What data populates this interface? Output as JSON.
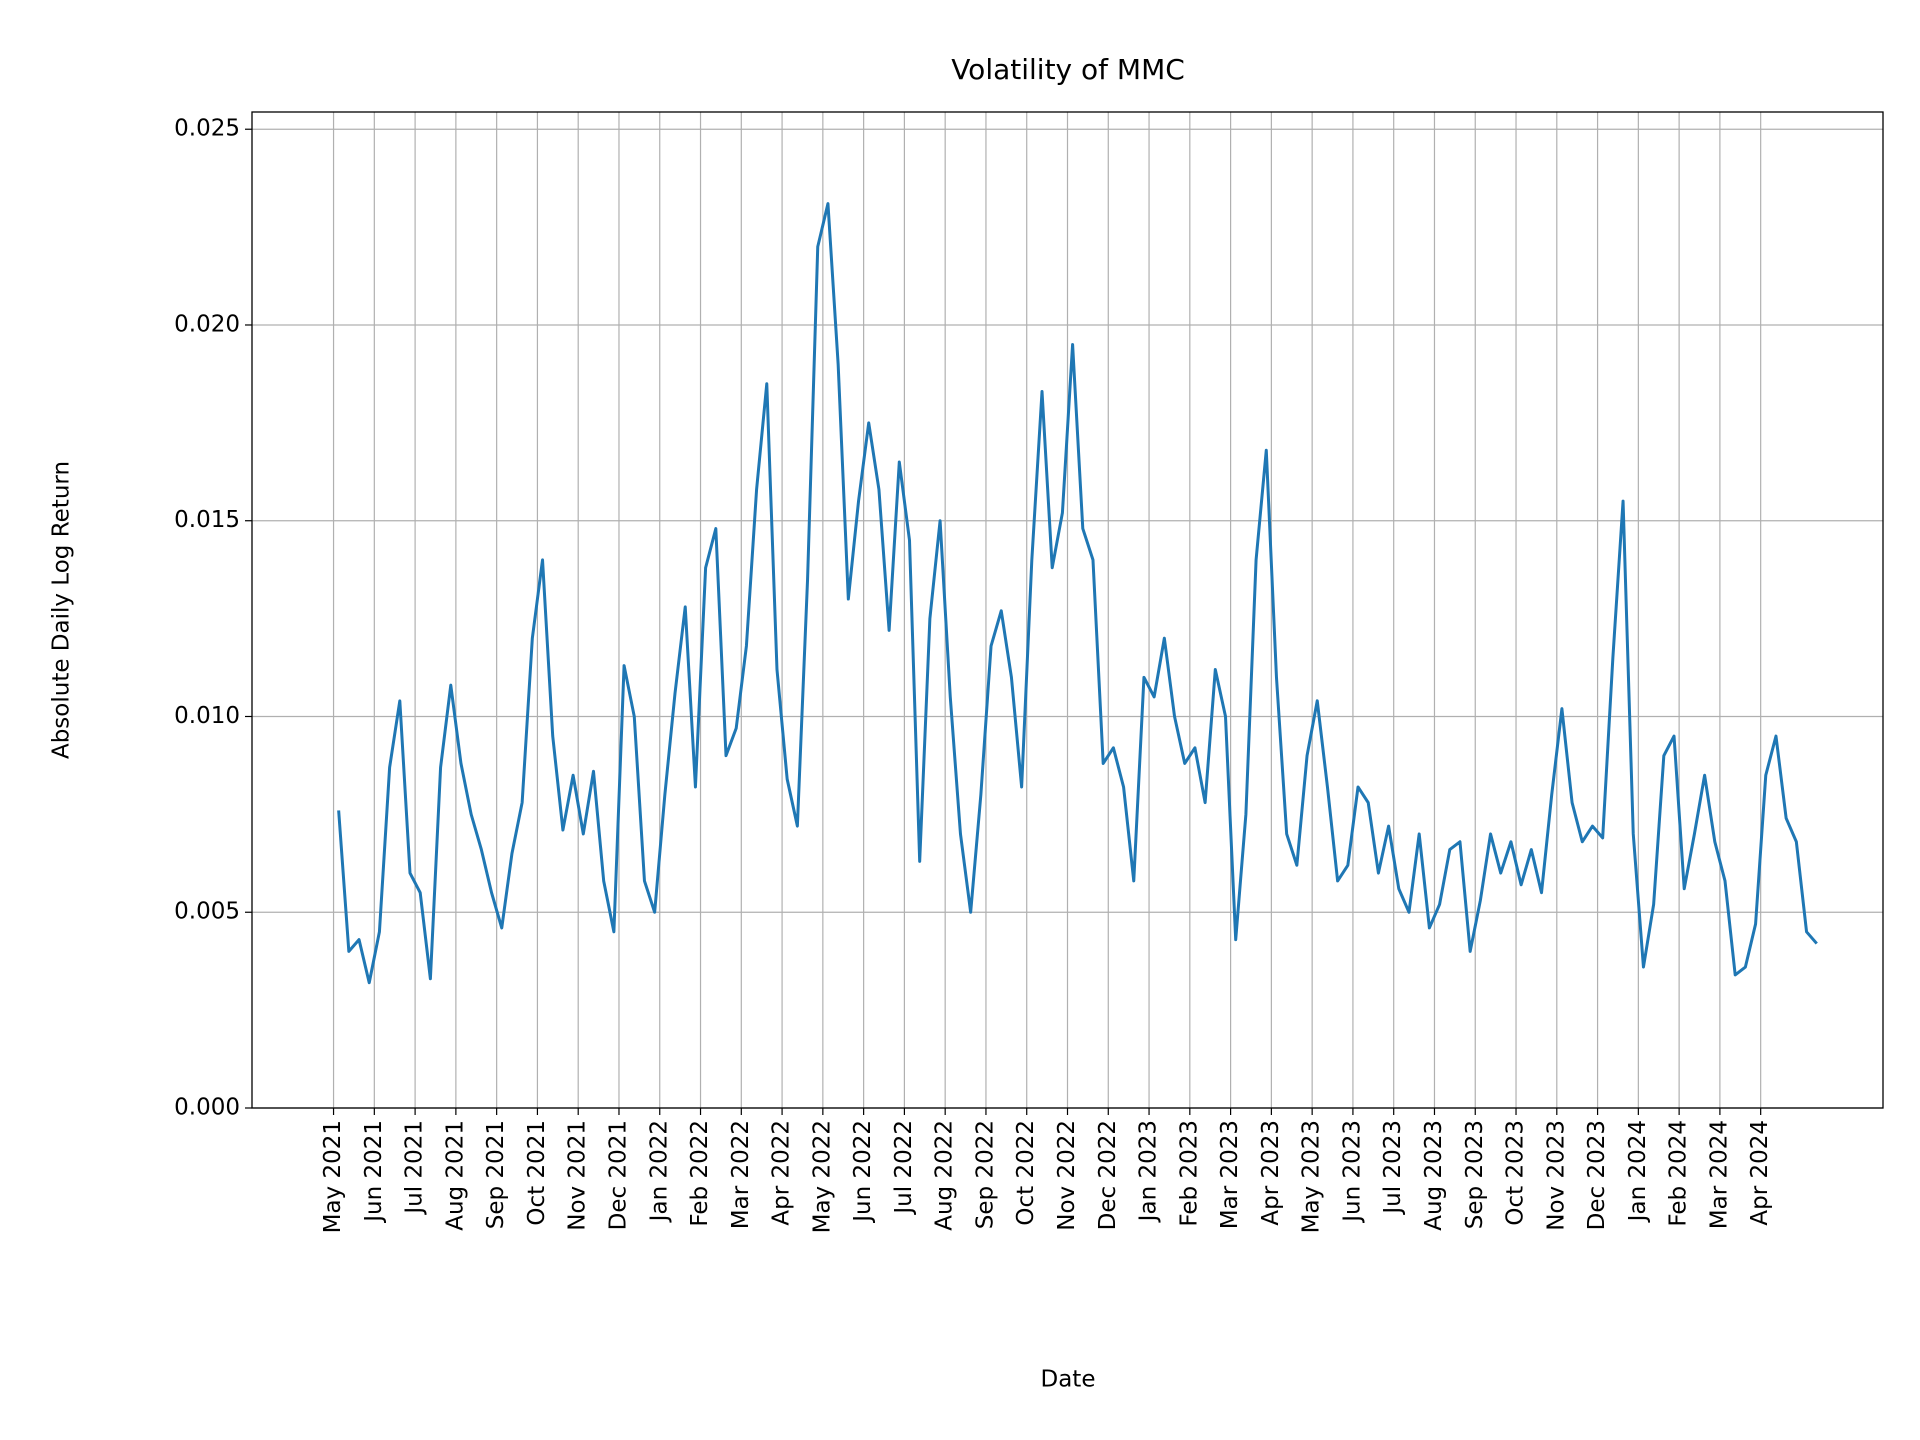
{
  "chart_data": {
    "type": "line",
    "title": "Volatility of MMC",
    "xlabel": "Date",
    "ylabel": "Absolute Daily Log Return",
    "x": [
      "2021-05",
      "2021-05",
      "2021-05",
      "2021-05",
      "2021-06",
      "2021-06",
      "2021-06",
      "2021-06",
      "2021-07",
      "2021-07",
      "2021-07",
      "2021-07",
      "2021-08",
      "2021-08",
      "2021-08",
      "2021-08",
      "2021-09",
      "2021-09",
      "2021-09",
      "2021-09",
      "2021-10",
      "2021-10",
      "2021-10",
      "2021-10",
      "2021-11",
      "2021-11",
      "2021-11",
      "2021-11",
      "2021-12",
      "2021-12",
      "2021-12",
      "2021-12",
      "2022-01",
      "2022-01",
      "2022-01",
      "2022-01",
      "2022-02",
      "2022-02",
      "2022-02",
      "2022-02",
      "2022-03",
      "2022-03",
      "2022-03",
      "2022-03",
      "2022-04",
      "2022-04",
      "2022-04",
      "2022-04",
      "2022-05",
      "2022-05",
      "2022-05",
      "2022-05",
      "2022-06",
      "2022-06",
      "2022-06",
      "2022-06",
      "2022-07",
      "2022-07",
      "2022-07",
      "2022-07",
      "2022-08",
      "2022-08",
      "2022-08",
      "2022-08",
      "2022-09",
      "2022-09",
      "2022-09",
      "2022-09",
      "2022-10",
      "2022-10",
      "2022-10",
      "2022-10",
      "2022-11",
      "2022-11",
      "2022-11",
      "2022-11",
      "2022-12",
      "2022-12",
      "2022-12",
      "2022-12",
      "2023-01",
      "2023-01",
      "2023-01",
      "2023-01",
      "2023-02",
      "2023-02",
      "2023-02",
      "2023-02",
      "2023-03",
      "2023-03",
      "2023-03",
      "2023-03",
      "2023-04",
      "2023-04",
      "2023-04",
      "2023-04",
      "2023-05",
      "2023-05",
      "2023-05",
      "2023-05",
      "2023-06",
      "2023-06",
      "2023-06",
      "2023-06",
      "2023-07",
      "2023-07",
      "2023-07",
      "2023-07",
      "2023-08",
      "2023-08",
      "2023-08",
      "2023-08",
      "2023-09",
      "2023-09",
      "2023-09",
      "2023-09",
      "2023-10",
      "2023-10",
      "2023-10",
      "2023-10",
      "2023-11",
      "2023-11",
      "2023-11",
      "2023-11",
      "2023-12",
      "2023-12",
      "2023-12",
      "2023-12",
      "2024-01",
      "2024-01",
      "2024-01",
      "2024-01",
      "2024-02",
      "2024-02",
      "2024-02",
      "2024-02",
      "2024-03",
      "2024-03",
      "2024-03",
      "2024-03",
      "2024-04",
      "2024-04",
      "2024-04",
      "2024-04",
      "2024-05",
      "2024-05"
    ],
    "values": [
      0.0076,
      0.004,
      0.0043,
      0.0032,
      0.0045,
      0.0087,
      0.0104,
      0.006,
      0.0055,
      0.0033,
      0.0087,
      0.0108,
      0.0088,
      0.0075,
      0.0066,
      0.0055,
      0.0046,
      0.0065,
      0.0078,
      0.012,
      0.014,
      0.0095,
      0.0071,
      0.0085,
      0.007,
      0.0086,
      0.0058,
      0.0045,
      0.0113,
      0.01,
      0.0058,
      0.005,
      0.008,
      0.0106,
      0.0128,
      0.0082,
      0.0138,
      0.0148,
      0.009,
      0.0097,
      0.0118,
      0.0158,
      0.0185,
      0.0112,
      0.0084,
      0.0072,
      0.0135,
      0.022,
      0.0231,
      0.019,
      0.013,
      0.0155,
      0.0175,
      0.0158,
      0.0122,
      0.0165,
      0.0145,
      0.0063,
      0.0125,
      0.015,
      0.0105,
      0.007,
      0.005,
      0.008,
      0.0118,
      0.0127,
      0.011,
      0.0082,
      0.014,
      0.0183,
      0.0138,
      0.0152,
      0.0195,
      0.0148,
      0.014,
      0.0088,
      0.0092,
      0.0082,
      0.0058,
      0.011,
      0.0105,
      0.012,
      0.01,
      0.0088,
      0.0092,
      0.0078,
      0.0112,
      0.01,
      0.0043,
      0.0075,
      0.014,
      0.0168,
      0.011,
      0.007,
      0.0062,
      0.009,
      0.0104,
      0.0082,
      0.0058,
      0.0062,
      0.0082,
      0.0078,
      0.006,
      0.0072,
      0.0056,
      0.005,
      0.007,
      0.0046,
      0.0052,
      0.0066,
      0.0068,
      0.004,
      0.0053,
      0.007,
      0.006,
      0.0068,
      0.0057,
      0.0066,
      0.0055,
      0.008,
      0.0102,
      0.0078,
      0.0068,
      0.0072,
      0.0069,
      0.0115,
      0.0155,
      0.007,
      0.0036,
      0.0052,
      0.009,
      0.0095,
      0.0056,
      0.007,
      0.0085,
      0.0068,
      0.0058,
      0.0034,
      0.0036,
      0.0047,
      0.0085,
      0.0095,
      0.0074,
      0.0068,
      0.0045,
      0.0042
    ],
    "color": "#1f77b4",
    "xlim": [
      "2021-03",
      "2024-07"
    ],
    "xticks": [
      {
        "value": "2021-05",
        "label": "May 2021"
      },
      {
        "value": "2021-06",
        "label": "Jun 2021"
      },
      {
        "value": "2021-07",
        "label": "Jul 2021"
      },
      {
        "value": "2021-08",
        "label": "Aug 2021"
      },
      {
        "value": "2021-09",
        "label": "Sep 2021"
      },
      {
        "value": "2021-10",
        "label": "Oct 2021"
      },
      {
        "value": "2021-11",
        "label": "Nov 2021"
      },
      {
        "value": "2021-12",
        "label": "Dec 2021"
      },
      {
        "value": "2022-01",
        "label": "Jan 2022"
      },
      {
        "value": "2022-02",
        "label": "Feb 2022"
      },
      {
        "value": "2022-03",
        "label": "Mar 2022"
      },
      {
        "value": "2022-04",
        "label": "Apr 2022"
      },
      {
        "value": "2022-05",
        "label": "May 2022"
      },
      {
        "value": "2022-06",
        "label": "Jun 2022"
      },
      {
        "value": "2022-07",
        "label": "Jul 2022"
      },
      {
        "value": "2022-08",
        "label": "Aug 2022"
      },
      {
        "value": "2022-09",
        "label": "Sep 2022"
      },
      {
        "value": "2022-10",
        "label": "Oct 2022"
      },
      {
        "value": "2022-11",
        "label": "Nov 2022"
      },
      {
        "value": "2022-12",
        "label": "Dec 2022"
      },
      {
        "value": "2023-01",
        "label": "Jan 2023"
      },
      {
        "value": "2023-02",
        "label": "Feb 2023"
      },
      {
        "value": "2023-03",
        "label": "Mar 2023"
      },
      {
        "value": "2023-04",
        "label": "Apr 2023"
      },
      {
        "value": "2023-05",
        "label": "May 2023"
      },
      {
        "value": "2023-06",
        "label": "Jun 2023"
      },
      {
        "value": "2023-07",
        "label": "Jul 2023"
      },
      {
        "value": "2023-08",
        "label": "Aug 2023"
      },
      {
        "value": "2023-09",
        "label": "Sep 2023"
      },
      {
        "value": "2023-10",
        "label": "Oct 2023"
      },
      {
        "value": "2023-11",
        "label": "Nov 2023"
      },
      {
        "value": "2023-12",
        "label": "Dec 2023"
      },
      {
        "value": "2024-01",
        "label": "Jan 2024"
      },
      {
        "value": "2024-02",
        "label": "Feb 2024"
      },
      {
        "value": "2024-03",
        "label": "Mar 2024"
      },
      {
        "value": "2024-04",
        "label": "Apr 2024"
      }
    ],
    "ylim": [
      0,
      0.02544
    ],
    "yticks": [
      {
        "value": 0,
        "label": "0.000"
      },
      0.005,
      {
        "value": 0.01,
        "label": "0.010"
      },
      0.015,
      {
        "value": 0.02,
        "label": "0.020"
      },
      0.025
    ],
    "grid": true
  }
}
